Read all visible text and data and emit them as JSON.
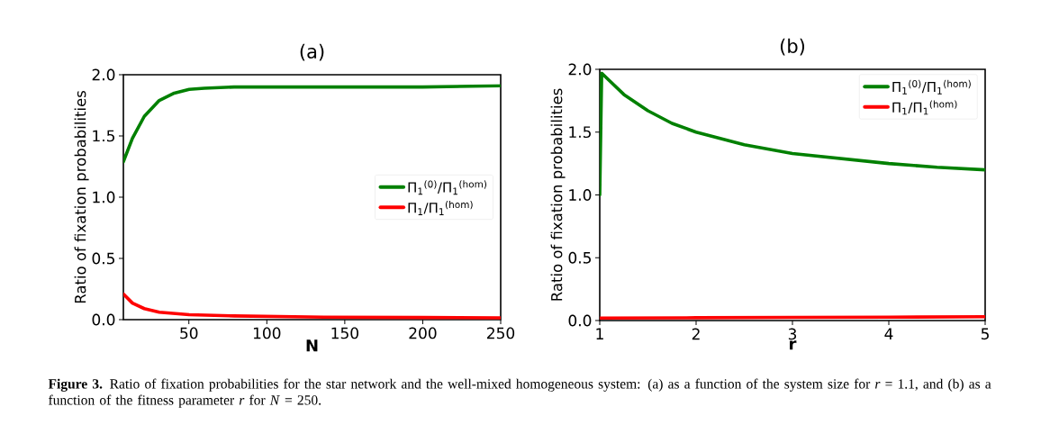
{
  "chart_data": [
    {
      "type": "line",
      "title": "(a)",
      "xlabel": "N",
      "ylabel": "Ratio of fixation probabilities",
      "series": [
        {
          "name": "Π$_{1}$$^{(0)}$/Π$_{1}$$^{(hom)}$",
          "color": "#008000",
          "x": [
            8,
            13.8,
            21.4,
            31,
            40.6,
            50.2,
            59.9,
            79,
            100,
            150,
            200,
            250
          ],
          "values": [
            1.29,
            1.48,
            1.66,
            1.79,
            1.85,
            1.88,
            1.89,
            1.9,
            1.9,
            1.9,
            1.9,
            1.91
          ]
        },
        {
          "name": "Π$_{1}$/Π$_{1}$$^{(hom)}$",
          "color": "#ff0000",
          "x": [
            8,
            13.8,
            21.4,
            31,
            50.2,
            79,
            136.7,
            200,
            250
          ],
          "values": [
            0.21,
            0.135,
            0.09,
            0.06,
            0.04,
            0.03,
            0.02,
            0.017,
            0.015
          ]
        }
      ],
      "xlim": [
        8,
        250
      ],
      "ylim": [
        0,
        2
      ],
      "xticks": [
        50,
        100,
        150,
        200,
        250
      ],
      "yticks": [
        {
          "value": 0,
          "label": "0.0"
        },
        {
          "value": 0.5,
          "label": "0.5"
        },
        {
          "value": 1,
          "label": "1.0"
        },
        {
          "value": 1.5,
          "label": "1.5"
        },
        {
          "value": 2,
          "label": "2.0"
        }
      ],
      "legend": "right",
      "annotations": [
        "**Figure 3.** Ratio of fixation probabilities for the star network and the well-mixed homogeneous system: (a) as a function of the system size for *r* = 1.1, and (b) as a function of the fitness parameter *r* for *N* = 250."
      ]
    },
    {
      "type": "line",
      "title": "(b)",
      "xlabel": "r",
      "ylabel": "Ratio of fixation probabilities",
      "series": [
        {
          "name": "Π$_{1}$$^{(0)}$/Π$_{1}$$^{(hom)}$",
          "color": "#008000",
          "x": [
            1,
            1.02,
            1.1,
            1.25,
            1.5,
            1.75,
            2,
            2.5,
            3,
            3.5,
            4,
            4.5,
            5
          ],
          "values": [
            1.0,
            1.97,
            1.91,
            1.8,
            1.67,
            1.57,
            1.5,
            1.4,
            1.33,
            1.29,
            1.25,
            1.22,
            1.2
          ]
        },
        {
          "name": "Π$_{1}$/Π$_{1}$$^{(hom)}$",
          "color": "#ff0000",
          "x": [
            1,
            2,
            3,
            4,
            5
          ],
          "values": [
            0.02,
            0.022,
            0.025,
            0.027,
            0.03
          ]
        }
      ],
      "xlim": [
        1,
        5
      ],
      "ylim": [
        0,
        2
      ],
      "xticks": [
        1,
        2,
        3,
        4,
        5
      ],
      "yticks": [
        {
          "value": 0,
          "label": "0.0"
        },
        {
          "value": 0.5,
          "label": "0.5"
        },
        {
          "value": 1,
          "label": "1.0"
        },
        {
          "value": 1.5,
          "label": "1.5"
        },
        {
          "value": 2,
          "label": "2.0"
        }
      ],
      "legend": "top right"
    }
  ]
}
